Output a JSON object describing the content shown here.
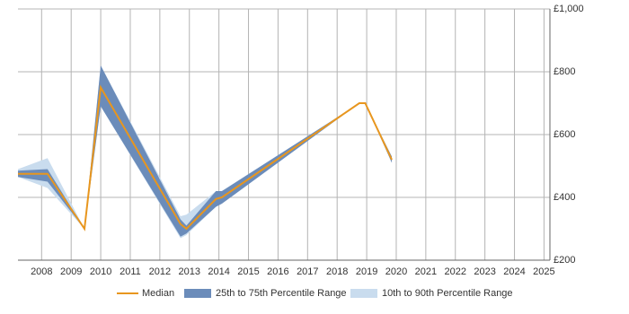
{
  "chart_data": {
    "type": "line",
    "x": [
      2007.2,
      2008.2,
      2009.45,
      2010.0,
      2012.7,
      2012.9,
      2013.9,
      2014.1,
      2018.75,
      2018.95,
      2019.85
    ],
    "series": [
      {
        "name": "10th to 90th Percentile Range",
        "color": "#c9dcee",
        "low": [
          465,
          430,
          300,
          690,
          270,
          280,
          370,
          380,
          700,
          700,
          510
        ],
        "high": [
          490,
          525,
          300,
          820,
          340,
          345,
          420,
          420,
          700,
          700,
          530
        ]
      },
      {
        "name": "25th to 75th Percentile Range",
        "color": "#6b8cba",
        "low": [
          465,
          450,
          300,
          690,
          275,
          285,
          370,
          380,
          700,
          700,
          510
        ],
        "high": [
          485,
          490,
          300,
          820,
          330,
          310,
          420,
          420,
          700,
          700,
          530
        ]
      },
      {
        "name": "Median",
        "color": "#e8961e",
        "values": [
          475,
          475,
          300,
          750,
          315,
          300,
          395,
          400,
          700,
          700,
          520
        ]
      }
    ],
    "xlim": [
      2007.2,
      2025.2
    ],
    "xticks": [
      2008,
      2009,
      2010,
      2011,
      2012,
      2013,
      2014,
      2015,
      2016,
      2017,
      2018,
      2019,
      2020,
      2021,
      2022,
      2023,
      2024,
      2025
    ],
    "ylim": [
      200,
      1000
    ],
    "yticks": [
      {
        "value": 200,
        "label": "£200"
      },
      {
        "value": 400,
        "label": "£400"
      },
      {
        "value": 600,
        "label": "£600"
      },
      {
        "value": 800,
        "label": "£800"
      },
      {
        "value": 1000,
        "label": "£1,000"
      }
    ],
    "grid": true
  }
}
